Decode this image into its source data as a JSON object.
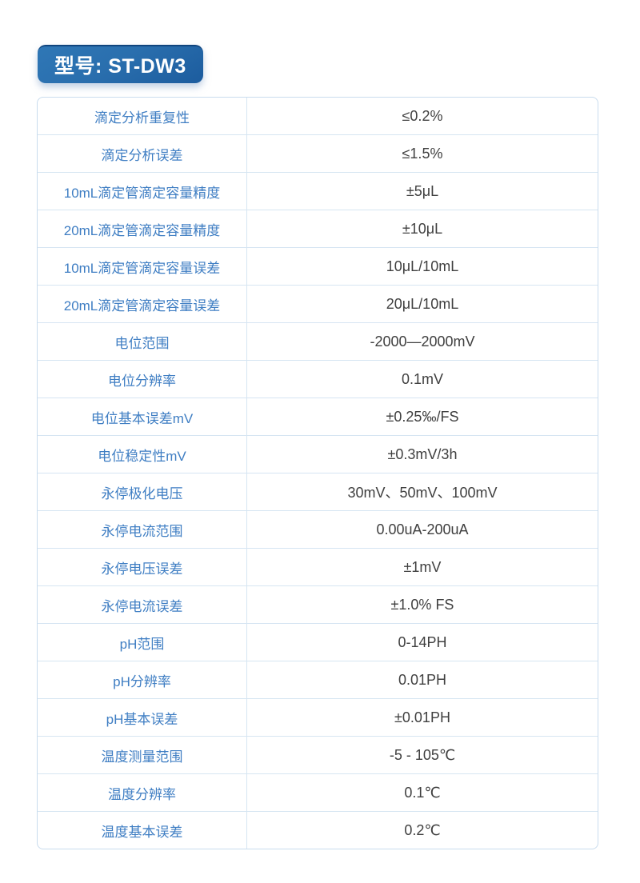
{
  "header": {
    "model_badge_label": "型号: ST-DW3",
    "badge_text_color": "#ffffff",
    "badge_gradient_top": "#2f77b6",
    "badge_gradient_bottom": "#1c5c9e"
  },
  "table": {
    "label_text_color": "#3f7ec3",
    "value_text_color": "#404040",
    "border_color": "#d6e5f2",
    "rows": [
      {
        "label": "滴定分析重复性",
        "value": "≤0.2%"
      },
      {
        "label": "滴定分析误差",
        "value": "≤1.5%"
      },
      {
        "label": "10mL滴定管滴定容量精度",
        "value": "±5μL"
      },
      {
        "label": "20mL滴定管滴定容量精度",
        "value": "±10μL"
      },
      {
        "label": "10mL滴定管滴定容量误差",
        "value": "10μL/10mL"
      },
      {
        "label": "20mL滴定管滴定容量误差",
        "value": "20μL/10mL"
      },
      {
        "label": "电位范围",
        "value": "-2000—2000mV"
      },
      {
        "label": "电位分辨率",
        "value": "0.1mV"
      },
      {
        "label": "电位基本误差mV",
        "value": "±0.25‰/FS"
      },
      {
        "label": "电位稳定性mV",
        "value": "±0.3mV/3h"
      },
      {
        "label": "永停极化电压",
        "value": "30mV、50mV、100mV"
      },
      {
        "label": "永停电流范围",
        "value": "0.00uA-200uA"
      },
      {
        "label": "永停电压误差",
        "value": "±1mV"
      },
      {
        "label": "永停电流误差",
        "value": "±1.0% FS"
      },
      {
        "label": "pH范围",
        "value": "0-14PH"
      },
      {
        "label": "pH分辨率",
        "value": "0.01PH"
      },
      {
        "label": "pH基本误差",
        "value": "±0.01PH"
      },
      {
        "label": "温度测量范围",
        "value": "-5 - 105℃"
      },
      {
        "label": "温度分辨率",
        "value": "0.1℃"
      },
      {
        "label": "温度基本误差",
        "value": "0.2℃"
      }
    ]
  }
}
